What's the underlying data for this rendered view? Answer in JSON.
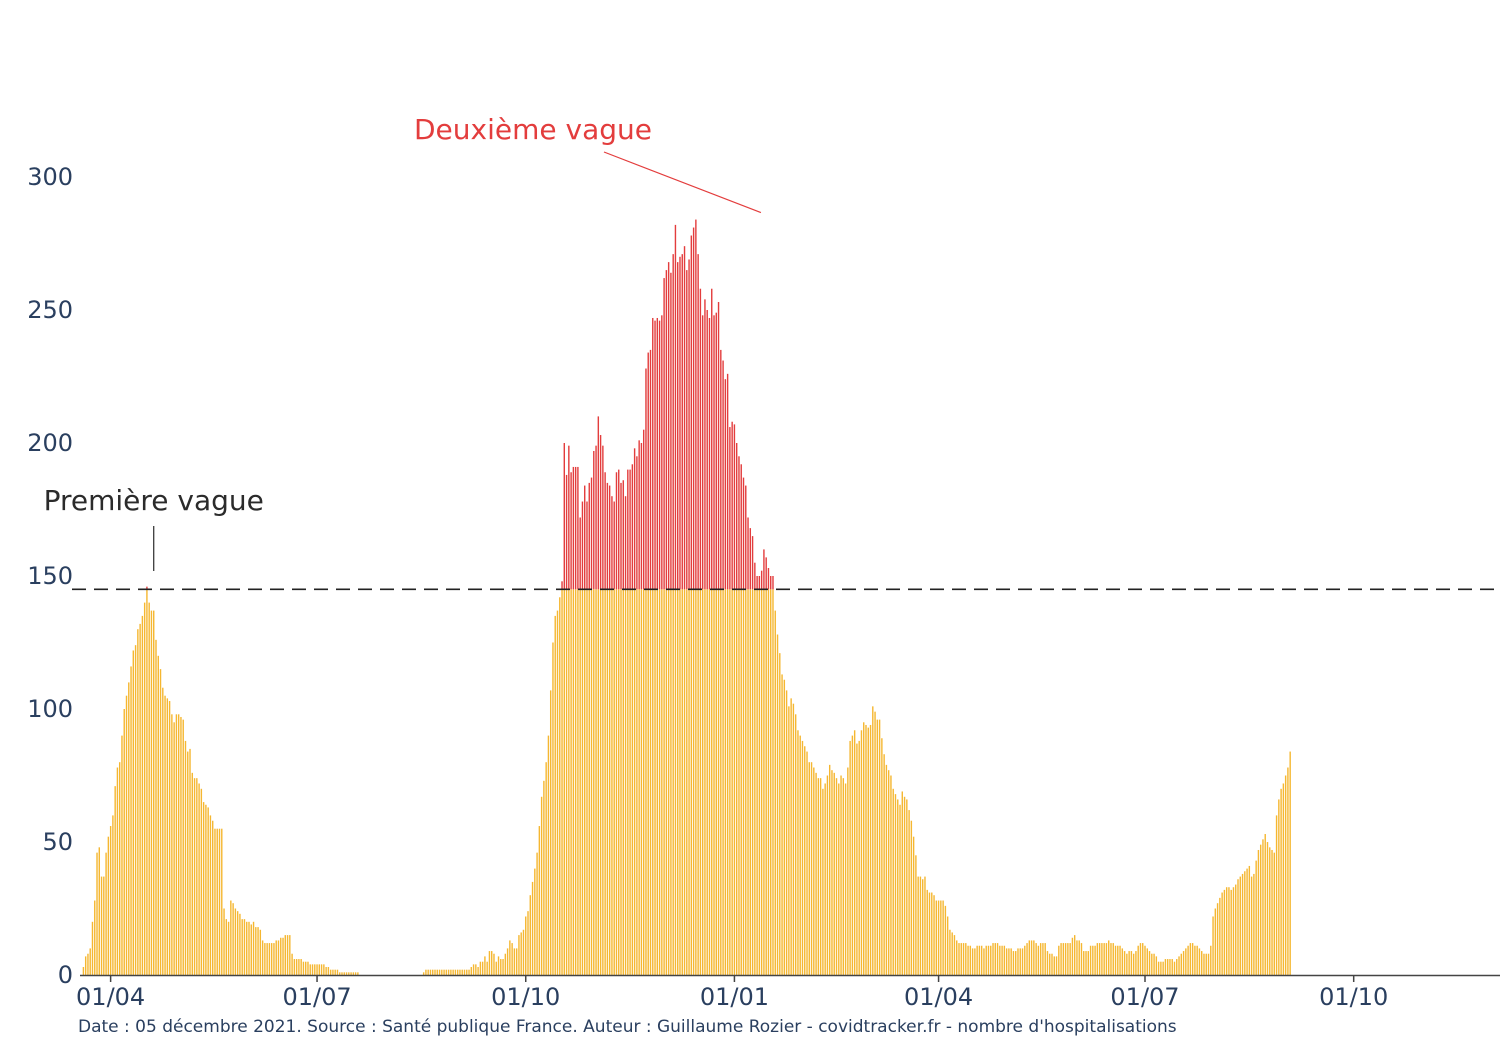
{
  "footer_text": "Date : 05 décembre 2021. Source : Santé publique France. Auteur : Guillaume Rozier - covidtracker.fr - nombre d'hospitalisations",
  "chart_data": {
    "type": "bar",
    "start_date": "2020-03-19",
    "end_date": "2021-12-04",
    "ylim": [
      0,
      300
    ],
    "y_ticks": [
      0,
      50,
      100,
      150,
      200,
      250,
      300
    ],
    "x_ticks": [
      {
        "date": "2020-04-01",
        "label": "01/04"
      },
      {
        "date": "2020-07-01",
        "label": "01/07"
      },
      {
        "date": "2020-10-01",
        "label": "01/10"
      },
      {
        "date": "2021-01-01",
        "label": "01/01"
      },
      {
        "date": "2021-04-01",
        "label": "01/04"
      },
      {
        "date": "2021-07-01",
        "label": "01/07"
      },
      {
        "date": "2021-10-01",
        "label": "01/10"
      }
    ],
    "threshold": 145,
    "colors": {
      "base": "#f5b731",
      "above_threshold": "#e33d3d",
      "threshold_line": "#222222",
      "axis": "#444444"
    },
    "annotations": [
      {
        "text": "Première vague",
        "date": "2020-04-20",
        "value": 150,
        "color": "#2b2b2b"
      },
      {
        "text": "Deuxième vague",
        "date": "2021-01-14",
        "value": 290,
        "color": "#e33d3d"
      }
    ],
    "series": [
      {
        "daily_values": [
          0,
          3,
          7,
          8,
          10,
          20,
          28,
          46,
          48,
          37,
          37,
          46,
          52,
          56,
          60,
          71,
          78,
          80,
          90,
          100,
          105,
          110,
          116,
          122,
          124,
          130,
          132,
          135,
          140,
          146,
          140,
          137,
          137,
          126,
          120,
          115,
          108,
          105,
          104,
          103,
          98,
          95,
          98,
          98,
          97,
          96,
          88,
          84,
          85,
          76,
          74,
          74,
          72,
          70,
          65,
          64,
          63,
          60,
          58,
          55,
          55,
          55,
          55,
          25,
          21,
          20,
          28,
          27,
          25,
          24,
          23,
          21,
          21,
          20,
          20,
          19,
          20,
          18,
          18,
          17,
          13,
          12,
          12,
          12,
          12,
          12,
          13,
          13,
          14,
          14,
          15,
          15,
          15,
          8,
          6,
          6,
          6,
          6,
          5,
          5,
          5,
          4,
          4,
          4,
          4,
          4,
          4,
          4,
          3,
          3,
          2,
          2,
          2,
          2,
          1,
          1,
          1,
          1,
          1,
          1,
          1,
          1,
          1,
          0,
          0,
          0,
          0,
          0,
          0,
          0,
          0,
          0,
          0,
          0,
          0,
          0,
          0,
          0,
          0,
          0,
          0,
          0,
          0,
          0,
          0,
          0,
          0,
          0,
          0,
          0,
          0,
          1,
          2,
          2,
          2,
          2,
          2,
          2,
          2,
          2,
          2,
          2,
          2,
          2,
          2,
          2,
          2,
          2,
          2,
          2,
          2,
          2,
          3,
          4,
          4,
          3,
          5,
          5,
          7,
          5,
          9,
          9,
          8,
          5,
          7,
          6,
          6,
          8,
          10,
          13,
          12,
          10,
          10,
          15,
          16,
          17,
          22,
          24,
          30,
          35,
          40,
          46,
          56,
          67,
          73,
          80,
          90,
          107,
          125,
          135,
          137,
          142,
          148,
          200,
          188,
          199,
          189,
          191,
          191,
          191,
          172,
          178,
          184,
          178,
          185,
          187,
          197,
          199,
          210,
          203,
          199,
          189,
          185,
          184,
          180,
          178,
          189,
          190,
          185,
          186,
          180,
          190,
          190,
          192,
          198,
          195,
          201,
          200,
          205,
          228,
          234,
          235,
          247,
          246,
          247,
          246,
          248,
          262,
          265,
          268,
          264,
          271,
          282,
          268,
          270,
          271,
          274,
          265,
          269,
          278,
          281,
          284,
          271,
          258,
          248,
          254,
          250,
          247,
          258,
          248,
          249,
          253,
          235,
          231,
          224,
          226,
          206,
          208,
          207,
          200,
          195,
          192,
          187,
          184,
          172,
          168,
          165,
          155,
          150,
          150,
          152,
          160,
          157,
          153,
          150,
          150,
          137,
          128,
          121,
          113,
          111,
          107,
          101,
          104,
          102,
          98,
          92,
          90,
          88,
          86,
          84,
          80,
          80,
          78,
          76,
          74,
          74,
          70,
          72,
          75,
          79,
          77,
          76,
          74,
          72,
          75,
          74,
          72,
          78,
          88,
          90,
          92,
          87,
          88,
          92,
          95,
          94,
          93,
          94,
          101,
          99,
          96,
          96,
          89,
          83,
          79,
          77,
          75,
          70,
          68,
          66,
          64,
          69,
          67,
          66,
          62,
          58,
          52,
          45,
          37,
          37,
          36,
          37,
          32,
          31,
          31,
          30,
          28,
          28,
          28,
          28,
          26,
          22,
          17,
          16,
          15,
          13,
          12,
          12,
          12,
          12,
          11,
          11,
          10,
          10,
          11,
          11,
          11,
          10,
          11,
          11,
          11,
          12,
          12,
          12,
          11,
          11,
          11,
          10,
          10,
          10,
          9,
          9,
          10,
          10,
          10,
          11,
          12,
          13,
          13,
          13,
          12,
          11,
          12,
          12,
          12,
          9,
          8,
          8,
          7,
          7,
          11,
          12,
          12,
          12,
          12,
          12,
          14,
          15,
          13,
          13,
          12,
          9,
          9,
          9,
          11,
          11,
          11,
          12,
          12,
          12,
          12,
          12,
          13,
          12,
          12,
          11,
          11,
          11,
          10,
          9,
          8,
          9,
          9,
          8,
          9,
          11,
          12,
          12,
          11,
          10,
          9,
          8,
          8,
          7,
          5,
          5,
          5,
          6,
          6,
          6,
          6,
          5,
          6,
          7,
          8,
          9,
          10,
          11,
          12,
          12,
          11,
          11,
          10,
          9,
          8,
          8,
          8,
          11,
          22,
          25,
          27,
          29,
          31,
          32,
          33,
          33,
          32,
          33,
          34,
          36,
          37,
          38,
          39,
          40,
          41,
          37,
          38,
          43,
          47,
          49,
          51,
          53,
          50,
          48,
          47,
          46,
          60,
          66,
          70,
          72,
          75,
          78,
          84
        ]
      }
    ]
  }
}
